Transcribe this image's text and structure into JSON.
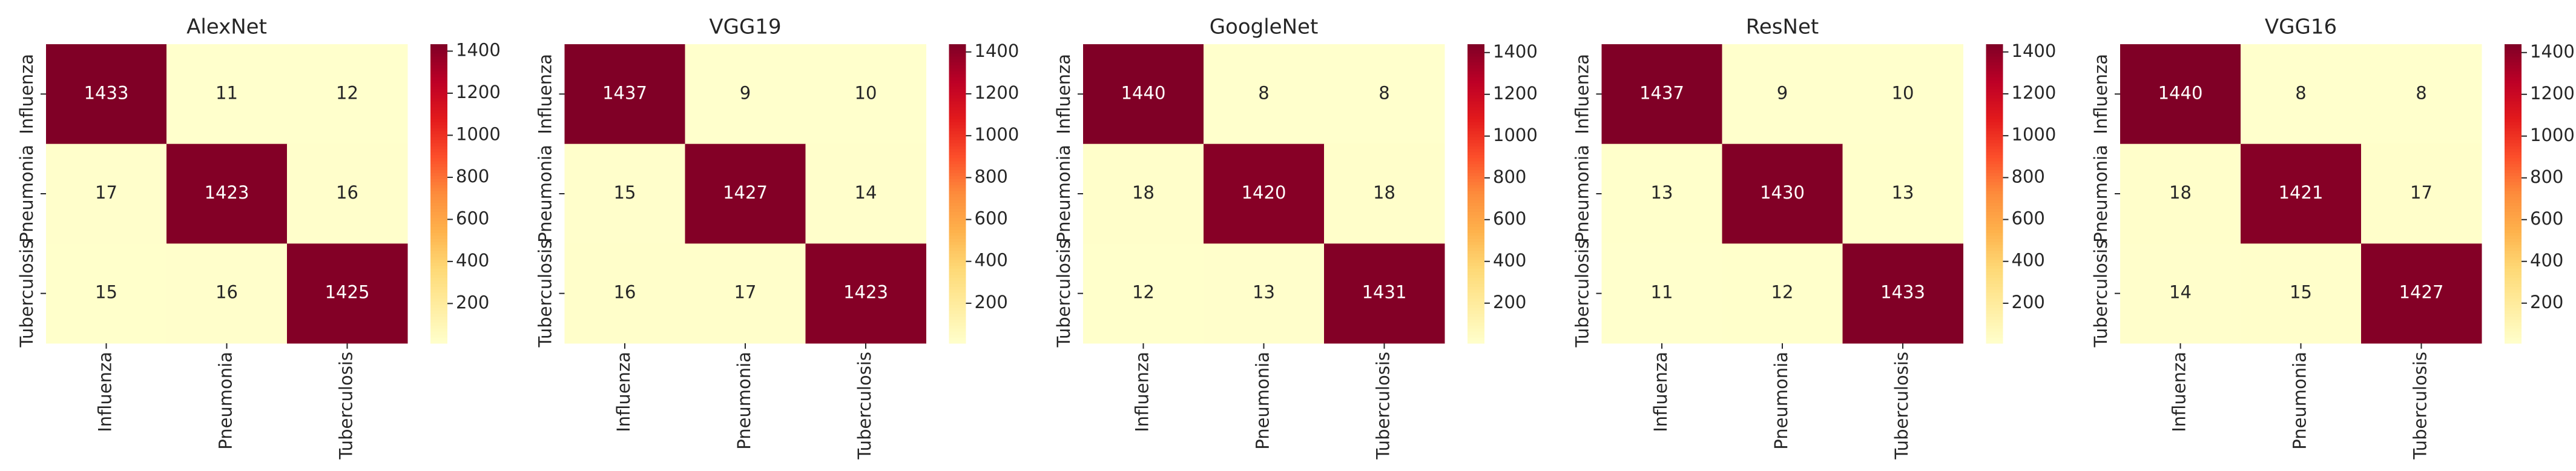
{
  "chart_data": [
    {
      "type": "heatmap",
      "title": "AlexNet",
      "x_categories": [
        "Influenza",
        "Pneumonia",
        "Tuberculosis"
      ],
      "y_categories": [
        "Influenza",
        "Pneumonia",
        "Tuberculosis"
      ],
      "values": [
        [
          1433,
          11,
          12
        ],
        [
          17,
          1423,
          16
        ],
        [
          15,
          16,
          1425
        ]
      ],
      "colormap": "YlOrRd",
      "clim": [
        11,
        1433
      ],
      "colorbar_ticks": [
        200,
        400,
        600,
        800,
        1000,
        1200,
        1400
      ]
    },
    {
      "type": "heatmap",
      "title": "VGG19",
      "x_categories": [
        "Influenza",
        "Pneumonia",
        "Tuberculosis"
      ],
      "y_categories": [
        "Influenza",
        "Pneumonia",
        "Tuberculosis"
      ],
      "values": [
        [
          1437,
          9,
          10
        ],
        [
          15,
          1427,
          14
        ],
        [
          16,
          17,
          1423
        ]
      ],
      "colormap": "YlOrRd",
      "clim": [
        9,
        1437
      ],
      "colorbar_ticks": [
        200,
        400,
        600,
        800,
        1000,
        1200,
        1400
      ]
    },
    {
      "type": "heatmap",
      "title": "GoogleNet",
      "x_categories": [
        "Influenza",
        "Pneumonia",
        "Tuberculosis"
      ],
      "y_categories": [
        "Influenza",
        "Pneumonia",
        "Tuberculosis"
      ],
      "values": [
        [
          1440,
          8,
          8
        ],
        [
          18,
          1420,
          18
        ],
        [
          12,
          13,
          1431
        ]
      ],
      "colormap": "YlOrRd",
      "clim": [
        8,
        1440
      ],
      "colorbar_ticks": [
        200,
        400,
        600,
        800,
        1000,
        1200,
        1400
      ]
    },
    {
      "type": "heatmap",
      "title": "ResNet",
      "x_categories": [
        "Influenza",
        "Pneumonia",
        "Tuberculosis"
      ],
      "y_categories": [
        "Influenza",
        "Pneumonia",
        "Tuberculosis"
      ],
      "values": [
        [
          1437,
          9,
          10
        ],
        [
          13,
          1430,
          13
        ],
        [
          11,
          12,
          1433
        ]
      ],
      "colormap": "YlOrRd",
      "clim": [
        9,
        1437
      ],
      "colorbar_ticks": [
        200,
        400,
        600,
        800,
        1000,
        1200,
        1400
      ]
    },
    {
      "type": "heatmap",
      "title": "VGG16",
      "x_categories": [
        "Influenza",
        "Pneumonia",
        "Tuberculosis"
      ],
      "y_categories": [
        "Influenza",
        "Pneumonia",
        "Tuberculosis"
      ],
      "values": [
        [
          1440,
          8,
          8
        ],
        [
          18,
          1421,
          17
        ],
        [
          14,
          15,
          1427
        ]
      ],
      "colormap": "YlOrRd",
      "clim": [
        8,
        1440
      ],
      "colorbar_ticks": [
        200,
        400,
        600,
        800,
        1000,
        1200,
        1400
      ]
    }
  ]
}
